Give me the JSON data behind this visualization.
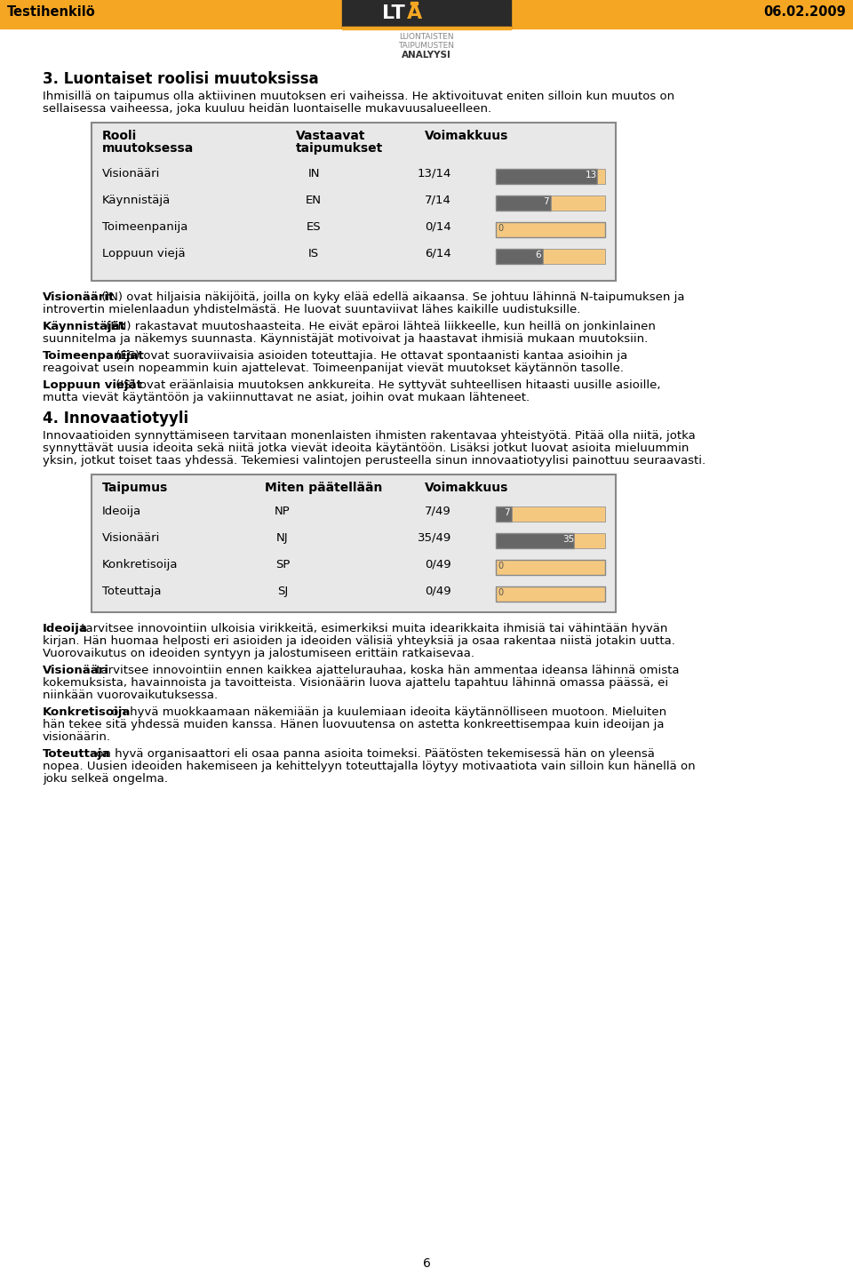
{
  "header_bg_color": "#F5A623",
  "header_text_left": "Testihenkilö",
  "header_text_right": "06.02.2009",
  "page_bg": "#FFFFFF",
  "section3_title": "3. Luontaiset roolisi muutoksissa",
  "section3_intro1": "Ihmisillä on taipumus olla aktiivinen muutoksen eri vaiheissa. He aktivoituvat eniten silloin kun muutos on\nsellaisessa vaiheessa, joka kuuluu heidän luontaiselle mukavuusalueelleen.",
  "table1_rows": [
    [
      "Visionääri",
      "IN",
      "13/14",
      13,
      14
    ],
    [
      "Käynnistäjä",
      "EN",
      "7/14",
      7,
      14
    ],
    [
      "Toimeenpanija",
      "ES",
      "0/14",
      0,
      14
    ],
    [
      "Loppuun viejä",
      "IS",
      "6/14",
      6,
      14
    ]
  ],
  "table_bg": "#E8E8E8",
  "table_border": "#888888",
  "bar_filled_color": "#666666",
  "bar_empty_color": "#F5C880",
  "bar_border_color": "#888888",
  "section3_texts": [
    [
      "Visionäärit",
      " (IN) ovat hiljaisia näkijöitä, joilla on kyky elää edellä aikaansa. Se johtuu lähinnä N-taipumuksen ja\nintrovertin mielenlaadun yhdistelmästä. He luovat suuntaviivat lähes kaikille uudistuksille."
    ],
    [
      "Käynnistäjät",
      " (EN) rakastavat muutoshaasteita. He eivät epäroi lähteä liikkeelle, kun heillä on jonkinlainen\nsuunnitelma ja näkemys suunnasta. Käynnistäjät motivoivat ja haastavat ihmisiä mukaan muutoksiin."
    ],
    [
      "Toimeenpanijat",
      " (ES) ovat suoraviivaisia asioiden toteuttajia. He ottavat spontaanisti kantaa asioihin ja\nreagoivat usein nopeammin kuin ajattelevat. Toimeenpanijat vievät muutokset käytännön tasolle."
    ],
    [
      "Loppuun viejät",
      " (IS) ovat eräänlaisia muutoksen ankkureita. He syttyvät suhteellisen hitaasti uusille asioille,\nmutta vievät käytäntöön ja vakiinnuttavat ne asiat, joihin ovat mukaan lähteneet."
    ]
  ],
  "section4_title": "4. Innovaatiotyyli",
  "section4_intro": "Innovaatioiden synnyttämiseen tarvitaan monenlaisten ihmisten rakentavaa yhteistyötä. Pitää olla niitä, jotka\nsynnyttävät uusia ideoita sekä niitä jotka vievät ideoita käytäntöön. Lisäksi jotkut luovat asioita mieluummin\nyksin, jotkut toiset taas yhdessä. Tekemiesi valintojen perusteella sinun innovaatiotyylisi painottuu seuraavasti.",
  "table2_rows": [
    [
      "Ideoija",
      "NP",
      "7/49",
      7,
      49
    ],
    [
      "Visionääri",
      "NJ",
      "35/49",
      35,
      49
    ],
    [
      "Konkretisoija",
      "SP",
      "0/49",
      0,
      49
    ],
    [
      "Toteuttaja",
      "SJ",
      "0/49",
      0,
      49
    ]
  ],
  "section4_texts": [
    [
      "Ideoija",
      " tarvitsee innovointiin ulkoisia virikkeitä, esimerkiksi muita idearikkaita ihmisiä tai vähintään hyvän\nkirjan. Hän huomaa helposti eri asioiden ja ideoiden välisiä yhteyksiä ja osaa rakentaa niistä jotakin uutta.\nVuorovaikutus on ideoiden syntyyn ja jalostumiseen erittäin ratkaisevaa."
    ],
    [
      "Visionääri",
      " tarvitsee innovointiin ennen kaikkea ajattelurauhaa, koska hän ammentaa ideansa lähinnä omista\nkokemuksista, havainnoista ja tavoitteista. Visionäärin luova ajattelu tapahtuu lähinnä omassa päässä, ei\nniinkään vuorovaikutuksessa."
    ],
    [
      "Konkretisoija",
      " on hyvä muokkaamaan näkemiään ja kuulemiaan ideoita käytännölliseen muotoon. Mieluiten\nhän tekee sitä yhdessä muiden kanssa. Hänen luovuutensa on astetta konkreettisempaa kuin ideoijan ja\nvisionäärin."
    ],
    [
      "Toteuttaja",
      " on hyvä organisaattori eli osaa panna asioita toimeksi. Päätösten tekemisessä hän on yleensä\nnopea. Uusien ideoiden hakemiseen ja kehittelyyn toteuttajalla löytyy motivaatiota vain silloin kun hänellä on\njoku selkeä ongelma."
    ]
  ],
  "footer_text": "6",
  "logo_text_line1": "LUONTAISTEN",
  "logo_text_line2": "TAIPUMUSTEN",
  "logo_text_line3": "ANALYYSI"
}
